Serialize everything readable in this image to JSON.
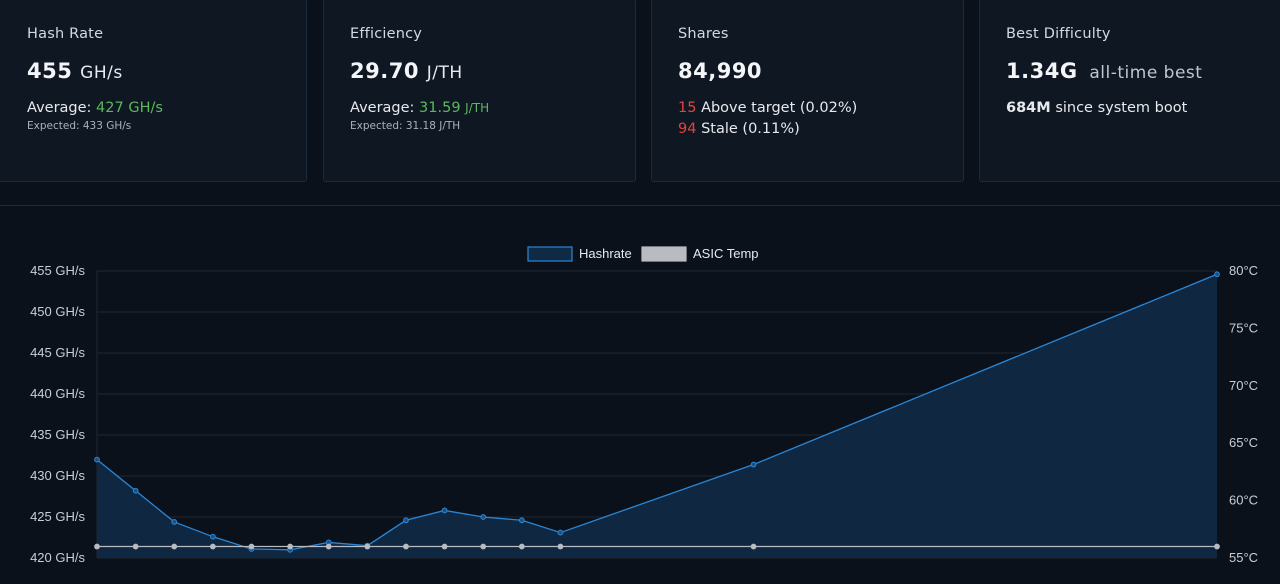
{
  "cards": {
    "hashrate": {
      "title": "Hash Rate",
      "value": "455",
      "unit": "GH/s",
      "average_label": "Average:",
      "average_value": "427",
      "average_unit": "GH/s",
      "expected": "Expected: 433 GH/s"
    },
    "efficiency": {
      "title": "Efficiency",
      "value": "29.70",
      "unit": "J/TH",
      "average_label": "Average:",
      "average_value": "31.59",
      "average_unit": "J/TH",
      "expected": "Expected: 31.18 J/TH"
    },
    "shares": {
      "title": "Shares",
      "value": "84,990",
      "above_count": "15",
      "above_label": "Above target",
      "above_pct": "(0.02%)",
      "stale_count": "94",
      "stale_label": "Stale",
      "stale_pct": "(0.11%)"
    },
    "difficulty": {
      "title": "Best Difficulty",
      "value": "1.34G",
      "value_suffix": "all-time best",
      "boot_value": "684M",
      "boot_label": "since system boot"
    }
  },
  "colors": {
    "accent_green": "#5cb85c",
    "accent_red": "#e0443e",
    "hashrate_line": "#2a86d6",
    "hashrate_fill": "#0f2a45",
    "temp_line": "#b8bcc2"
  },
  "chart_data": {
    "type": "line",
    "legend": [
      {
        "name": "Hashrate",
        "color": "#2a86d6"
      },
      {
        "name": "ASIC Temp",
        "color": "#b8bcc2"
      }
    ],
    "legend_position": "top-center",
    "grid": true,
    "y_left": {
      "ylim": [
        420,
        455
      ],
      "ticks": [
        "455 GH/s",
        "450 GH/s",
        "445 GH/s",
        "440 GH/s",
        "435 GH/s",
        "430 GH/s",
        "425 GH/s",
        "420 GH/s"
      ],
      "tick_values": [
        455,
        450,
        445,
        440,
        435,
        430,
        425,
        420
      ]
    },
    "y_right": {
      "ylim": [
        55,
        80
      ],
      "ticks": [
        "80°C",
        "75°C",
        "70°C",
        "65°C",
        "60°C",
        "55°C"
      ],
      "tick_values": [
        80,
        75,
        70,
        65,
        60,
        55
      ]
    },
    "x": [
      0,
      1,
      2,
      3,
      4,
      5,
      6,
      7,
      8,
      9,
      10,
      11,
      12,
      17,
      29
    ],
    "series": [
      {
        "name": "Hashrate",
        "axis": "left",
        "filled": true,
        "values": [
          432.0,
          428.2,
          424.4,
          422.6,
          421.1,
          421.0,
          421.9,
          421.5,
          424.6,
          425.8,
          425.0,
          424.6,
          423.1,
          431.4,
          454.6
        ]
      },
      {
        "name": "ASIC Temp",
        "axis": "right",
        "filled": false,
        "values": [
          56,
          56,
          56,
          56,
          56,
          56,
          56,
          56,
          56,
          56,
          56,
          56,
          56,
          56,
          56
        ]
      }
    ]
  }
}
